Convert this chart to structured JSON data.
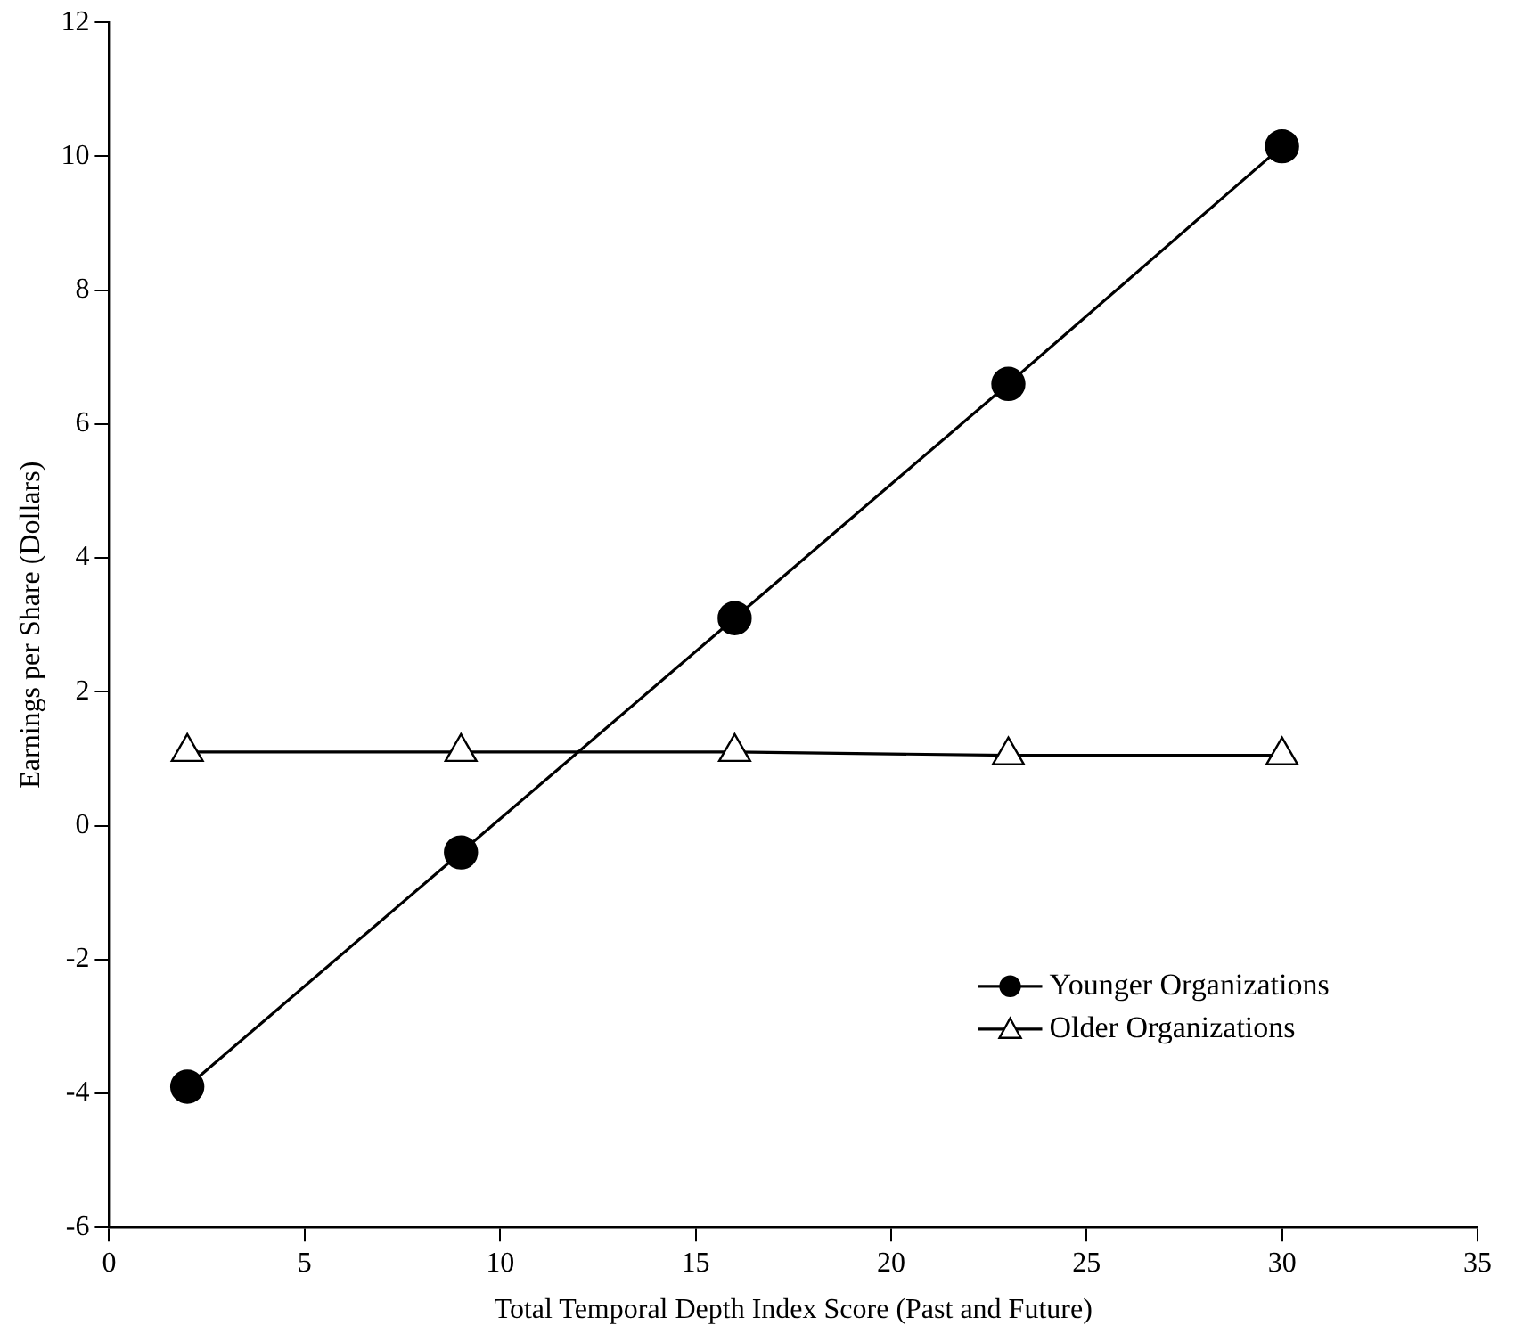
{
  "chart_data": {
    "type": "line",
    "xlabel": "Total Temporal Depth Index Score (Past and Future)",
    "ylabel": "Earnings per Share (Dollars)",
    "x": [
      2,
      9,
      16,
      23,
      30
    ],
    "series": [
      {
        "name": "Younger Organizations",
        "color": "#000000",
        "marker": "circle",
        "values": [
          -3.9,
          -0.4,
          3.1,
          6.6,
          10.15
        ]
      },
      {
        "name": "Older Organizations",
        "color": "#000000",
        "marker": "triangle",
        "values": [
          1.1,
          1.1,
          1.1,
          1.05,
          1.05
        ]
      }
    ],
    "xlim": [
      0,
      35
    ],
    "xticks": [
      0,
      5,
      10,
      15,
      20,
      25,
      30,
      35
    ],
    "ylim": [
      -6,
      12
    ],
    "yticks": [
      -6,
      -4,
      -2,
      0,
      2,
      4,
      6,
      8,
      10,
      12
    ],
    "grid": false,
    "legend": "bottom right",
    "line_style": "solid"
  }
}
